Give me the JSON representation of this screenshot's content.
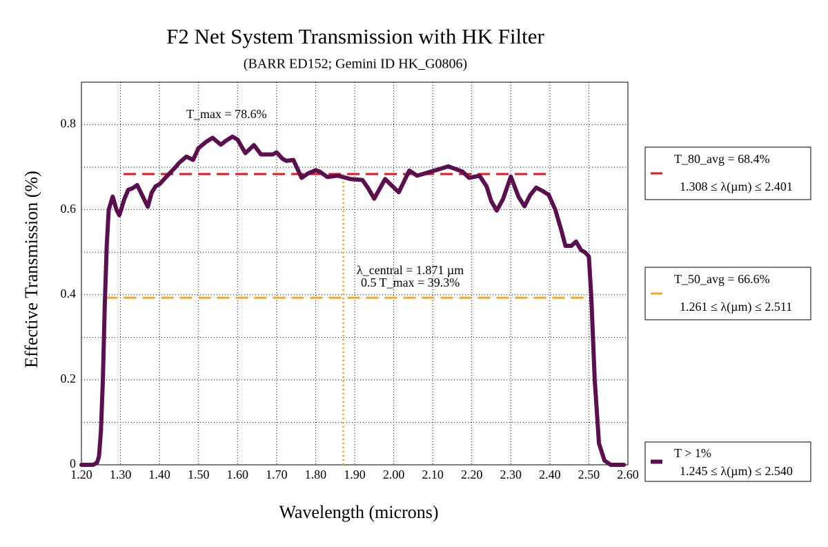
{
  "chart_data": {
    "type": "line",
    "title": "F2 Net System Transmission with HK Filter",
    "subtitle": "(BARR ED152; Gemini ID HK_G0806)",
    "xlabel": "Wavelength (microns)",
    "ylabel": "Effective Transmission (%)",
    "x": [
      1.2,
      1.23,
      1.24,
      1.245,
      1.25,
      1.255,
      1.26,
      1.265,
      1.27,
      1.28,
      1.29,
      1.297,
      1.31,
      1.32,
      1.33,
      1.343,
      1.355,
      1.37,
      1.38,
      1.39,
      1.4,
      1.42,
      1.44,
      1.45,
      1.469,
      1.486,
      1.5,
      1.52,
      1.536,
      1.557,
      1.57,
      1.587,
      1.6,
      1.62,
      1.642,
      1.66,
      1.69,
      1.7,
      1.715,
      1.725,
      1.743,
      1.764,
      1.78,
      1.8,
      1.81,
      1.83,
      1.857,
      1.89,
      1.92,
      1.935,
      1.95,
      1.978,
      2.013,
      2.04,
      2.06,
      2.097,
      2.14,
      2.176,
      2.193,
      2.22,
      2.238,
      2.25,
      2.264,
      2.28,
      2.3,
      2.32,
      2.335,
      2.35,
      2.365,
      2.38,
      2.397,
      2.414,
      2.43,
      2.44,
      2.455,
      2.467,
      2.48,
      2.49,
      2.5,
      2.506,
      2.515,
      2.526,
      2.54,
      2.556,
      2.59
    ],
    "series": [
      {
        "name": "T > 1%",
        "range_label": "1.245 ≤ λ(µm) ≤ 2.540",
        "color": "#5c0f4f",
        "values": [
          0,
          0,
          0.005,
          0.02,
          0.08,
          0.2,
          0.38,
          0.52,
          0.6,
          0.631,
          0.6,
          0.587,
          0.625,
          0.647,
          0.65,
          0.658,
          0.635,
          0.607,
          0.64,
          0.655,
          0.66,
          0.68,
          0.699,
          0.71,
          0.725,
          0.717,
          0.745,
          0.76,
          0.769,
          0.753,
          0.762,
          0.772,
          0.765,
          0.733,
          0.752,
          0.73,
          0.73,
          0.735,
          0.72,
          0.715,
          0.717,
          0.675,
          0.685,
          0.693,
          0.69,
          0.677,
          0.68,
          0.672,
          0.67,
          0.65,
          0.626,
          0.672,
          0.641,
          0.692,
          0.68,
          0.69,
          0.702,
          0.69,
          0.675,
          0.68,
          0.655,
          0.62,
          0.598,
          0.625,
          0.678,
          0.63,
          0.608,
          0.635,
          0.652,
          0.645,
          0.635,
          0.6,
          0.55,
          0.515,
          0.515,
          0.525,
          0.505,
          0.5,
          0.49,
          0.4,
          0.2,
          0.05,
          0.01,
          0,
          0
        ]
      }
    ],
    "reference_lines": [
      {
        "name": "T_80_avg = 68.4%",
        "range_label": "1.308 ≤ λ(µm) ≤ 2.401",
        "y": 0.684,
        "x": [
          1.308,
          2.401
        ],
        "color": "#e8141c",
        "style": "dashed"
      },
      {
        "name": "T_50_avg = 66.6%",
        "range_label": "1.261 ≤ λ(µm) ≤ 2.511",
        "y": 0.393,
        "x": [
          1.261,
          2.511
        ],
        "color": "#f5a623",
        "style": "dashed"
      },
      {
        "x": 1.871,
        "y": [
          0,
          0.684
        ],
        "color": "#f5a623",
        "style": "dotted"
      }
    ],
    "annotations": [
      "T_max = 78.6%",
      "λ_central = 1.871 µm",
      "0.5 T_max = 39.3%"
    ],
    "xlim": [
      1.2,
      2.6
    ],
    "xticks": [
      {
        "value": 1.2,
        "label": "1.20"
      },
      {
        "value": 1.3,
        "label": "1.30"
      },
      {
        "value": 1.4,
        "label": "1.40"
      },
      {
        "value": 1.5,
        "label": "1.50"
      },
      {
        "value": 1.6,
        "label": "1.60"
      },
      {
        "value": 1.7,
        "label": "1.70"
      },
      {
        "value": 1.8,
        "label": "1.80"
      },
      {
        "value": 1.9,
        "label": "1.90"
      },
      {
        "value": 2.0,
        "label": "2.00"
      },
      {
        "value": 2.1,
        "label": "2.10"
      },
      {
        "value": 2.2,
        "label": "2.20"
      },
      {
        "value": 2.3,
        "label": "2.30"
      },
      {
        "value": 2.4,
        "label": "2.40"
      },
      {
        "value": 2.5,
        "label": "2.50"
      },
      {
        "value": 2.6,
        "label": "2.60"
      }
    ],
    "ylim": [
      0,
      0.9
    ],
    "yticks": [
      0,
      0.2,
      0.4,
      0.6,
      0.8
    ],
    "yminorticks": [
      0.1,
      0.3,
      0.5,
      0.7
    ],
    "grid": true
  }
}
